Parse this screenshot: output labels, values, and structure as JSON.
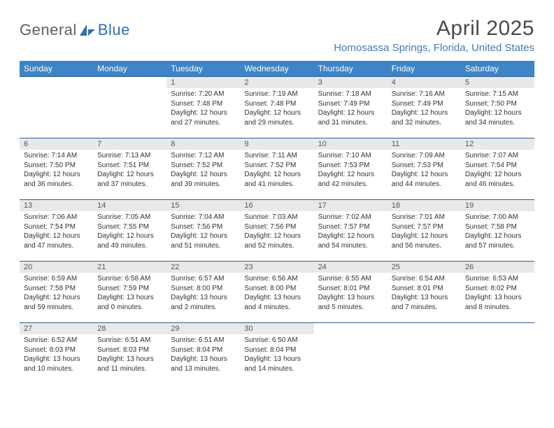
{
  "logo": {
    "text_left": "General",
    "text_right": "Blue",
    "left_color": "#6d6d6d",
    "right_color": "#2e6faf",
    "icon_color": "#2e6faf"
  },
  "header": {
    "title": "April 2025",
    "subtitle": "Homosassa Springs, Florida, United States"
  },
  "colors": {
    "header_bg": "#3d85c6",
    "header_fg": "#ffffff",
    "row_border": "#2d5d91",
    "daynum_bg": "#e9e9e9"
  },
  "weekdays": [
    "Sunday",
    "Monday",
    "Tuesday",
    "Wednesday",
    "Thursday",
    "Friday",
    "Saturday"
  ],
  "grid": [
    [
      null,
      null,
      {
        "n": "1",
        "sunrise": "7:20 AM",
        "sunset": "7:48 PM",
        "dl": "12 hours and 27 minutes."
      },
      {
        "n": "2",
        "sunrise": "7:19 AM",
        "sunset": "7:48 PM",
        "dl": "12 hours and 29 minutes."
      },
      {
        "n": "3",
        "sunrise": "7:18 AM",
        "sunset": "7:49 PM",
        "dl": "12 hours and 31 minutes."
      },
      {
        "n": "4",
        "sunrise": "7:16 AM",
        "sunset": "7:49 PM",
        "dl": "12 hours and 32 minutes."
      },
      {
        "n": "5",
        "sunrise": "7:15 AM",
        "sunset": "7:50 PM",
        "dl": "12 hours and 34 minutes."
      }
    ],
    [
      {
        "n": "6",
        "sunrise": "7:14 AM",
        "sunset": "7:50 PM",
        "dl": "12 hours and 36 minutes."
      },
      {
        "n": "7",
        "sunrise": "7:13 AM",
        "sunset": "7:51 PM",
        "dl": "12 hours and 37 minutes."
      },
      {
        "n": "8",
        "sunrise": "7:12 AM",
        "sunset": "7:52 PM",
        "dl": "12 hours and 39 minutes."
      },
      {
        "n": "9",
        "sunrise": "7:11 AM",
        "sunset": "7:52 PM",
        "dl": "12 hours and 41 minutes."
      },
      {
        "n": "10",
        "sunrise": "7:10 AM",
        "sunset": "7:53 PM",
        "dl": "12 hours and 42 minutes."
      },
      {
        "n": "11",
        "sunrise": "7:09 AM",
        "sunset": "7:53 PM",
        "dl": "12 hours and 44 minutes."
      },
      {
        "n": "12",
        "sunrise": "7:07 AM",
        "sunset": "7:54 PM",
        "dl": "12 hours and 46 minutes."
      }
    ],
    [
      {
        "n": "13",
        "sunrise": "7:06 AM",
        "sunset": "7:54 PM",
        "dl": "12 hours and 47 minutes."
      },
      {
        "n": "14",
        "sunrise": "7:05 AM",
        "sunset": "7:55 PM",
        "dl": "12 hours and 49 minutes."
      },
      {
        "n": "15",
        "sunrise": "7:04 AM",
        "sunset": "7:56 PM",
        "dl": "12 hours and 51 minutes."
      },
      {
        "n": "16",
        "sunrise": "7:03 AM",
        "sunset": "7:56 PM",
        "dl": "12 hours and 52 minutes."
      },
      {
        "n": "17",
        "sunrise": "7:02 AM",
        "sunset": "7:57 PM",
        "dl": "12 hours and 54 minutes."
      },
      {
        "n": "18",
        "sunrise": "7:01 AM",
        "sunset": "7:57 PM",
        "dl": "12 hours and 56 minutes."
      },
      {
        "n": "19",
        "sunrise": "7:00 AM",
        "sunset": "7:58 PM",
        "dl": "12 hours and 57 minutes."
      }
    ],
    [
      {
        "n": "20",
        "sunrise": "6:59 AM",
        "sunset": "7:58 PM",
        "dl": "12 hours and 59 minutes."
      },
      {
        "n": "21",
        "sunrise": "6:58 AM",
        "sunset": "7:59 PM",
        "dl": "13 hours and 0 minutes."
      },
      {
        "n": "22",
        "sunrise": "6:57 AM",
        "sunset": "8:00 PM",
        "dl": "13 hours and 2 minutes."
      },
      {
        "n": "23",
        "sunrise": "6:56 AM",
        "sunset": "8:00 PM",
        "dl": "13 hours and 4 minutes."
      },
      {
        "n": "24",
        "sunrise": "6:55 AM",
        "sunset": "8:01 PM",
        "dl": "13 hours and 5 minutes."
      },
      {
        "n": "25",
        "sunrise": "6:54 AM",
        "sunset": "8:01 PM",
        "dl": "13 hours and 7 minutes."
      },
      {
        "n": "26",
        "sunrise": "6:53 AM",
        "sunset": "8:02 PM",
        "dl": "13 hours and 8 minutes."
      }
    ],
    [
      {
        "n": "27",
        "sunrise": "6:52 AM",
        "sunset": "8:03 PM",
        "dl": "13 hours and 10 minutes."
      },
      {
        "n": "28",
        "sunrise": "6:51 AM",
        "sunset": "8:03 PM",
        "dl": "13 hours and 11 minutes."
      },
      {
        "n": "29",
        "sunrise": "6:51 AM",
        "sunset": "8:04 PM",
        "dl": "13 hours and 13 minutes."
      },
      {
        "n": "30",
        "sunrise": "6:50 AM",
        "sunset": "8:04 PM",
        "dl": "13 hours and 14 minutes."
      },
      null,
      null,
      null
    ]
  ],
  "labels": {
    "sunrise": "Sunrise:",
    "sunset": "Sunset:",
    "daylight": "Daylight:"
  }
}
